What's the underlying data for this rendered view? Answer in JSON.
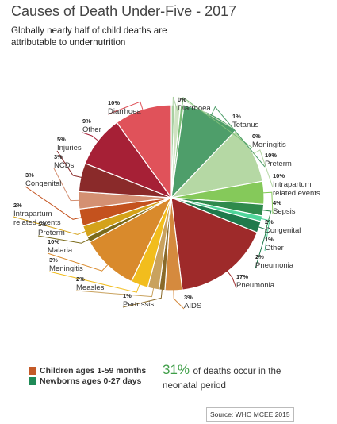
{
  "title": "Causes of Death Under-Five - 2017",
  "subtitle": "Globally nearly half of child deaths are attributable to undernutrition",
  "legend": [
    {
      "label": "Children ages 1-59 months",
      "color": "#c45a28"
    },
    {
      "label": "Newborns ages 0-27 days",
      "color": "#1f8a57"
    }
  ],
  "stat": {
    "value": "31%",
    "text": "of deaths occur in the neonatal period"
  },
  "source": "Source: WHO MCEE 2015",
  "chart_data": {
    "type": "pie",
    "series": [
      {
        "label": "Diarrhoea",
        "group": "Newborns ages 0-27 days",
        "value": 0,
        "pct": "0%",
        "color": "#a8cfa0"
      },
      {
        "label": "Tetanus",
        "group": "Newborns ages 0-27 days",
        "value": 1,
        "pct": "1%",
        "color": "#cfe3c2"
      },
      {
        "label": "Meningitis",
        "group": "Newborns ages 0-27 days",
        "value": 0,
        "pct": "0%",
        "color": "#7fbf7a"
      },
      {
        "label": "Preterm",
        "group": "Newborns ages 0-27 days",
        "value": 10,
        "pct": "10%",
        "color": "#4e9e6a"
      },
      {
        "label": "Intrapartum related events",
        "group": "Newborns ages 0-27 days",
        "value": 10,
        "pct": "10%",
        "color": "#b5d8a4"
      },
      {
        "label": "Sepsis",
        "group": "Newborns ages 0-27 days",
        "value": 4,
        "pct": "4%",
        "color": "#85c95a"
      },
      {
        "label": "Congenital",
        "group": "Newborns ages 0-27 days",
        "value": 2,
        "pct": "2%",
        "color": "#2f8a4c"
      },
      {
        "label": "Other",
        "group": "Newborns ages 0-27 days",
        "value": 1,
        "pct": "1%",
        "color": "#4fd59a"
      },
      {
        "label": "Pneumonia",
        "group": "Newborns ages 0-27 days",
        "value": 2,
        "pct": "2%",
        "color": "#1f7a4c"
      },
      {
        "label": "Pneumonia",
        "group": "Children ages 1-59 months",
        "value": 17,
        "pct": "17%",
        "color": "#9e2a2a"
      },
      {
        "label": "AIDS",
        "group": "Children ages 1-59 months",
        "value": 3,
        "pct": "3%",
        "color": "#d58a3e"
      },
      {
        "label": "Pertussis",
        "group": "Children ages 1-59 months",
        "value": 1,
        "pct": "1%",
        "color": "#8a6a2a"
      },
      {
        "label": "Measles",
        "group": "Children ages 1-59 months",
        "value": 2,
        "pct": "2%",
        "color": "#c9a25e"
      },
      {
        "label": "Meningitis",
        "group": "Children ages 1-59 months",
        "value": 3,
        "pct": "3%",
        "color": "#f2bd1d"
      },
      {
        "label": "Malaria",
        "group": "Children ages 1-59 months",
        "value": 10,
        "pct": "10%",
        "color": "#d98a2c"
      },
      {
        "label": "Preterm",
        "group": "Children ages 1-59 months",
        "value": 1,
        "pct": "1%",
        "color": "#7a6a1a"
      },
      {
        "label": "Intrapartum related events",
        "group": "Children ages 1-59 months",
        "value": 2,
        "pct": "2%",
        "color": "#d4a21a"
      },
      {
        "label": "Congenital",
        "group": "Children ages 1-59 months",
        "value": 3,
        "pct": "3%",
        "color": "#c4521e"
      },
      {
        "label": "NCDs",
        "group": "Children ages 1-59 months",
        "value": 3,
        "pct": "3%",
        "color": "#d49072"
      },
      {
        "label": "Injuries",
        "group": "Children ages 1-59 months",
        "value": 5,
        "pct": "5%",
        "color": "#8a2a2a"
      },
      {
        "label": "Other",
        "group": "Children ages 1-59 months",
        "value": 9,
        "pct": "9%",
        "color": "#a62036"
      },
      {
        "label": "Diarrhoea",
        "group": "Children ages 1-59 months",
        "value": 10,
        "pct": "10%",
        "color": "#e0525a"
      }
    ]
  }
}
